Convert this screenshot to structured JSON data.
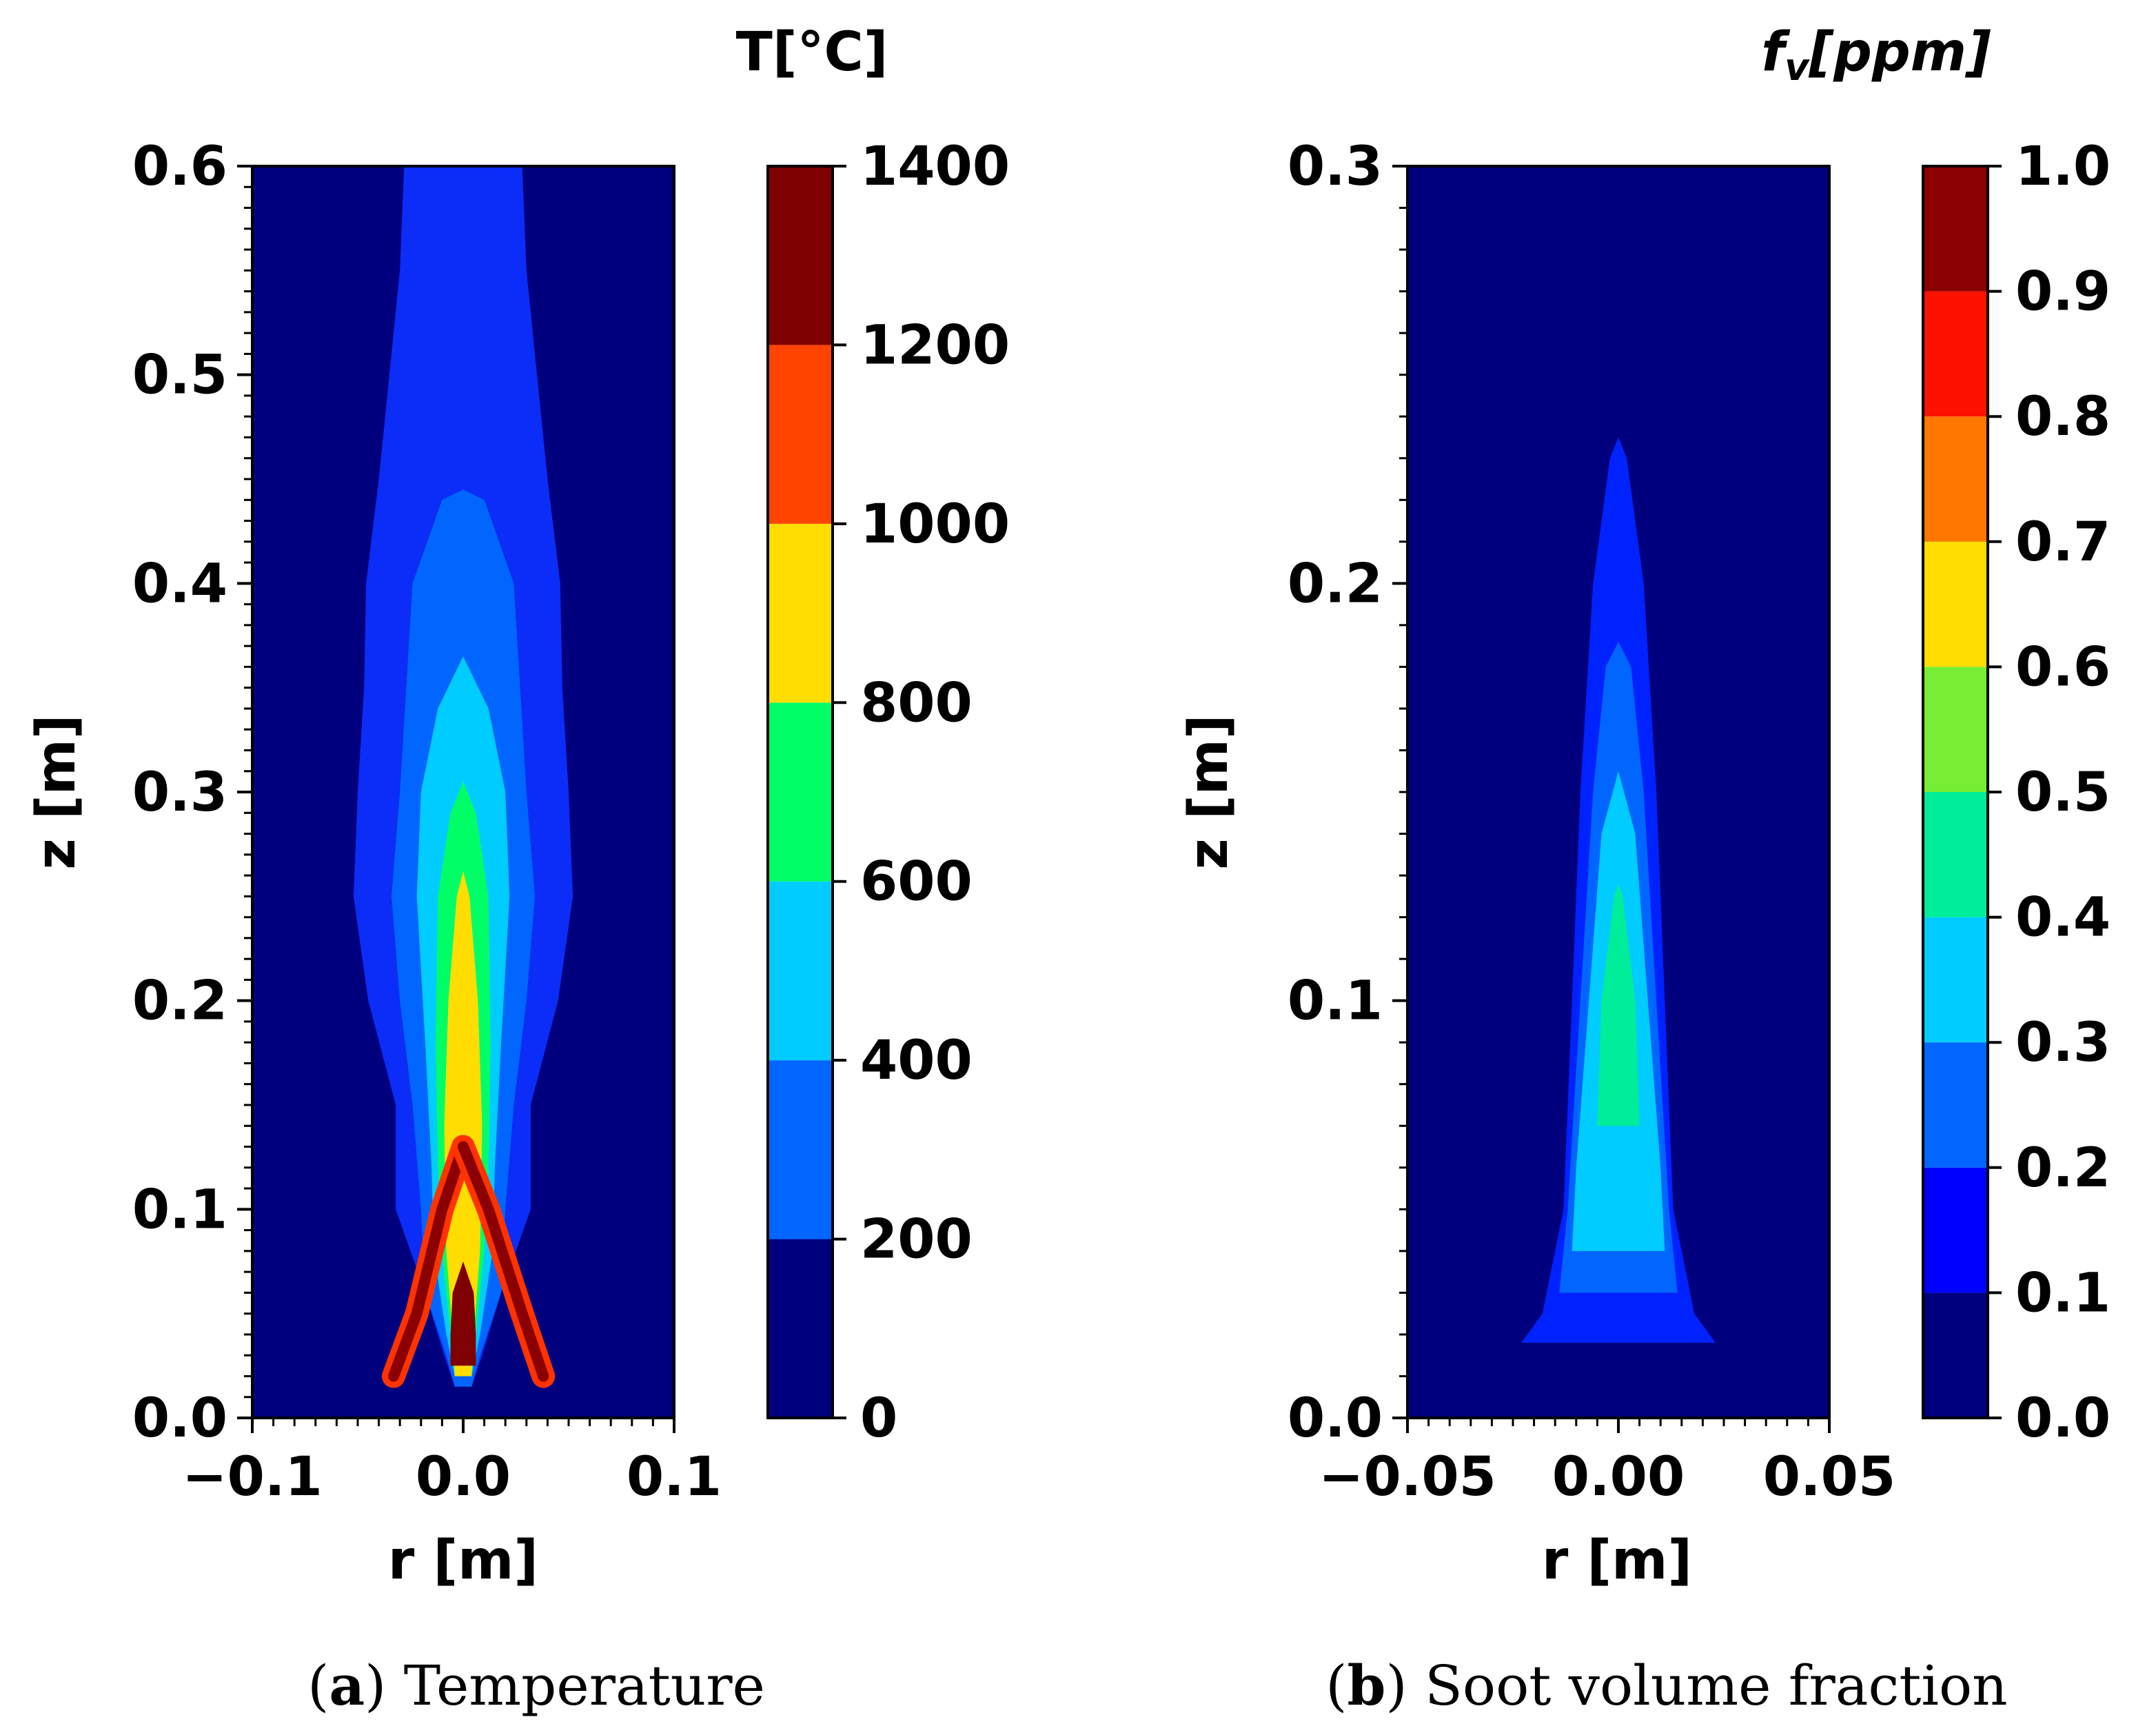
{
  "chart_data": [
    {
      "type": "heatmap",
      "panel": "a",
      "caption_letter": "a",
      "caption_text": "Temperature",
      "xlabel": "r [m]",
      "ylabel": "z [m]",
      "xlim": [
        -0.1,
        0.1
      ],
      "ylim": [
        0.0,
        0.6
      ],
      "xticks": [
        "−0.1",
        "0.0",
        "0.1"
      ],
      "xtick_values": [
        -0.1,
        0.0,
        0.1
      ],
      "yticks": [
        "0.0",
        "0.1",
        "0.2",
        "0.3",
        "0.4",
        "0.5",
        "0.6"
      ],
      "ytick_values": [
        0.0,
        0.1,
        0.2,
        0.3,
        0.4,
        0.5,
        0.6
      ],
      "y_minor_step": 0.01,
      "colorbar": {
        "title": "T[°C]",
        "levels": [
          0,
          200,
          400,
          600,
          800,
          1000,
          1200,
          1400
        ],
        "tick_labels": [
          "0",
          "200",
          "400",
          "600",
          "800",
          "1000",
          "1200",
          "1400"
        ],
        "colors": [
          "#00007f",
          "#0066ff",
          "#00ccff",
          "#00ff66",
          "#ffdd00",
          "#ff4400",
          "#7f0000"
        ]
      },
      "contours": [
        {
          "level": 200,
          "color": "#0b2df7",
          "profile": [
            [
              0.015,
              0.004
            ],
            [
              0.03,
              0.009
            ],
            [
              0.06,
              0.018
            ],
            [
              0.1,
              0.032
            ],
            [
              0.15,
              0.032
            ],
            [
              0.2,
              0.045
            ],
            [
              0.25,
              0.052
            ],
            [
              0.3,
              0.05
            ],
            [
              0.35,
              0.047
            ],
            [
              0.4,
              0.046
            ],
            [
              0.45,
              0.04
            ],
            [
              0.5,
              0.035
            ],
            [
              0.55,
              0.03
            ],
            [
              0.6,
              0.028
            ]
          ]
        },
        {
          "level": 400,
          "color": "#0066ff",
          "profile": [
            [
              0.015,
              0.004
            ],
            [
              0.03,
              0.008
            ],
            [
              0.06,
              0.018
            ],
            [
              0.1,
              0.02
            ],
            [
              0.15,
              0.024
            ],
            [
              0.2,
              0.03
            ],
            [
              0.25,
              0.034
            ],
            [
              0.3,
              0.03
            ],
            [
              0.35,
              0.027
            ],
            [
              0.4,
              0.024
            ],
            [
              0.44,
              0.01
            ],
            [
              0.445,
              0.0
            ]
          ]
        },
        {
          "level": 600,
          "color": "#00ccff",
          "profile": [
            [
              0.02,
              0.004
            ],
            [
              0.04,
              0.008
            ],
            [
              0.08,
              0.014
            ],
            [
              0.12,
              0.015
            ],
            [
              0.18,
              0.018
            ],
            [
              0.25,
              0.022
            ],
            [
              0.3,
              0.02
            ],
            [
              0.34,
              0.012
            ],
            [
              0.365,
              0.0
            ]
          ]
        },
        {
          "level": 800,
          "color": "#00ff66",
          "profile": [
            [
              0.02,
              0.004
            ],
            [
              0.04,
              0.006
            ],
            [
              0.08,
              0.01
            ],
            [
              0.12,
              0.012
            ],
            [
              0.18,
              0.013
            ],
            [
              0.25,
              0.012
            ],
            [
              0.29,
              0.006
            ],
            [
              0.305,
              0.0
            ]
          ]
        },
        {
          "level": 1000,
          "color": "#ffdd00",
          "profile": [
            [
              0.02,
              0.004
            ],
            [
              0.04,
              0.005
            ],
            [
              0.08,
              0.008
            ],
            [
              0.14,
              0.009
            ],
            [
              0.2,
              0.007
            ],
            [
              0.25,
              0.003
            ],
            [
              0.262,
              0.0
            ]
          ]
        },
        {
          "level": 1200,
          "color": "#7f0000",
          "profile": [
            [
              0.025,
              0.006
            ],
            [
              0.04,
              0.006
            ],
            [
              0.06,
              0.005
            ],
            [
              0.075,
              0.0
            ]
          ]
        }
      ],
      "features": [
        {
          "label": "left flame arm",
          "x": [
            -0.033,
            -0.022,
            -0.01,
            0.0
          ],
          "z": [
            0.02,
            0.05,
            0.1,
            0.13
          ]
        },
        {
          "label": "right flame arm",
          "x": [
            0.038,
            0.028,
            0.012,
            0.0
          ],
          "z": [
            0.02,
            0.05,
            0.1,
            0.13
          ]
        }
      ]
    },
    {
      "type": "heatmap",
      "panel": "b",
      "caption_letter": "b",
      "caption_text": "Soot volume fraction",
      "xlabel": "r [m]",
      "ylabel": "z [m]",
      "xlim": [
        -0.05,
        0.05
      ],
      "ylim": [
        0.0,
        0.3
      ],
      "xticks": [
        "−0.05",
        "0.00",
        "0.05"
      ],
      "xtick_values": [
        -0.05,
        0.0,
        0.05
      ],
      "yticks": [
        "0.0",
        "0.1",
        "0.2",
        "0.3"
      ],
      "ytick_values": [
        0.0,
        0.1,
        0.2,
        0.3
      ],
      "y_minor_step": 0.01,
      "colorbar": {
        "title_main": "f",
        "title_sub": "v",
        "title_rest": "[ppm]",
        "levels": [
          0.0,
          0.1,
          0.2,
          0.3,
          0.4,
          0.5,
          0.6,
          0.7,
          0.8,
          0.9,
          1.0
        ],
        "tick_labels": [
          "0.0",
          "0.1",
          "0.2",
          "0.3",
          "0.4",
          "0.5",
          "0.6",
          "0.7",
          "0.8",
          "0.9",
          "1.0"
        ],
        "colors": [
          "#00007f",
          "#0000ff",
          "#0066ff",
          "#00ccff",
          "#00ee99",
          "#77ee33",
          "#ffdd00",
          "#ff7700",
          "#ff1100",
          "#8b0000"
        ]
      },
      "contours": [
        {
          "level": 0.1,
          "color": "#0022ff",
          "profile": [
            [
              0.018,
              0.023
            ],
            [
              0.025,
              0.018
            ],
            [
              0.05,
              0.013
            ],
            [
              0.1,
              0.011
            ],
            [
              0.15,
              0.009
            ],
            [
              0.2,
              0.006
            ],
            [
              0.23,
              0.002
            ],
            [
              0.235,
              0.0
            ]
          ]
        },
        {
          "level": 0.2,
          "color": "#0066ff",
          "profile": [
            [
              0.03,
              0.014
            ],
            [
              0.05,
              0.012
            ],
            [
              0.1,
              0.009
            ],
            [
              0.15,
              0.006
            ],
            [
              0.18,
              0.003
            ],
            [
              0.186,
              0.0
            ]
          ]
        },
        {
          "level": 0.3,
          "color": "#00ccff",
          "profile": [
            [
              0.04,
              0.011
            ],
            [
              0.06,
              0.01
            ],
            [
              0.1,
              0.007
            ],
            [
              0.14,
              0.004
            ],
            [
              0.155,
              0.0
            ]
          ]
        },
        {
          "level": 0.4,
          "color": "#00ee99",
          "profile": [
            [
              0.07,
              0.005
            ],
            [
              0.1,
              0.004
            ],
            [
              0.125,
              0.001
            ],
            [
              0.128,
              0.0
            ]
          ]
        }
      ]
    }
  ]
}
